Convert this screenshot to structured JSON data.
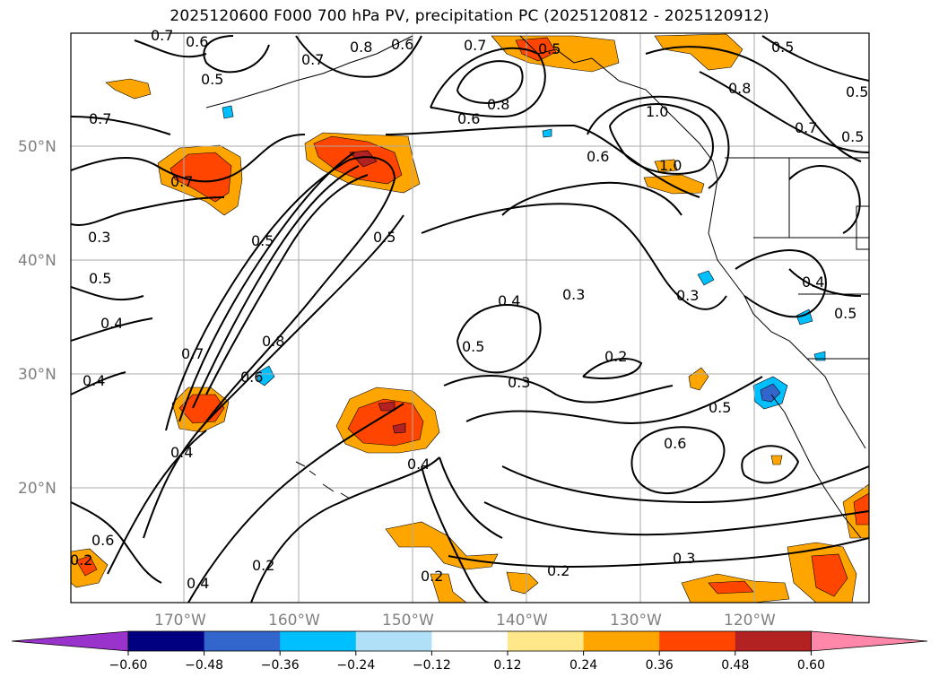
{
  "title": "2025120600 F000 700 hPa PV, precipitation PC (2025120812 - 2025120912)",
  "lat_labels": [
    "50°N",
    "40°N",
    "30°N",
    "20°N"
  ],
  "lon_labels": [
    "170°W",
    "160°W",
    "150°W",
    "140°W",
    "130°W",
    "120°W"
  ],
  "contour_labels": [
    "0.7",
    "0.6",
    "0.5",
    "0.8",
    "0.6",
    "0.7",
    "0.5",
    "0.8",
    "0.6",
    "0.5",
    "0.7",
    "0.5",
    "0.8",
    "1.0",
    "0.6",
    "0.7",
    "0.5",
    "0.7",
    "0.3",
    "0.5",
    "0.5",
    "0.4",
    "0.4",
    "0.7",
    "0.8",
    "0.6",
    "0.4",
    "0.3",
    "0.5",
    "0.3",
    "0.2",
    "0.3",
    "0.4",
    "0.5",
    "0.2",
    "0.5",
    "0.6",
    "0.4",
    "0.4",
    "0.6",
    "0.2",
    "0.2",
    "0.3",
    "0.2",
    "0.4",
    "0.5",
    "0.7",
    "1.0"
  ],
  "colorbar": {
    "colors": [
      "#9933cc",
      "#000080",
      "#3366cc",
      "#00bfff",
      "#b0e0f8",
      "#ffffff",
      "#ffe88a",
      "#ffa500",
      "#ff4500",
      "#b22222",
      "#ff88aa"
    ],
    "ticks": [
      "−0.60",
      "−0.48",
      "−0.36",
      "−0.24",
      "−0.12",
      "0.12",
      "0.24",
      "0.36",
      "0.48",
      "0.60"
    ]
  }
}
